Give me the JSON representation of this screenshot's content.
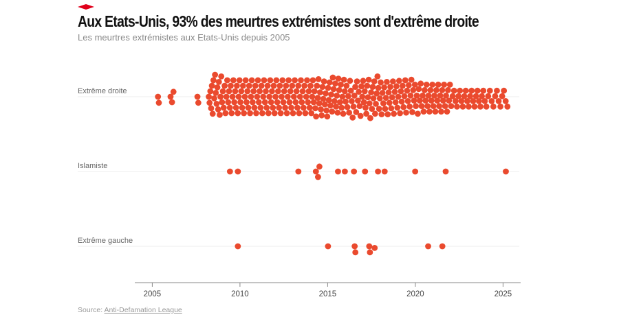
{
  "header": {
    "title": "Aux Etats-Unis, 93% des meurtres extrémistes sont d'extrême droite",
    "subtitle": "Les meurtres extrémistes aux Etats-Unis depuis 2005"
  },
  "source": {
    "prefix": "Source: ",
    "link_text": "Anti-Defamation League"
  },
  "colors": {
    "dot": "#ea4a2e",
    "accent": "#e0001b"
  },
  "chart_data": {
    "type": "scatter",
    "subtype": "beeswarm",
    "title": "Aux Etats-Unis, 93% des meurtres extrémistes sont d'extrême droite",
    "subtitle": "Les meurtres extrémistes aux Etats-Unis depuis 2005",
    "xlim": [
      2004,
      2026
    ],
    "xticks": [
      "2005",
      "2010",
      "2015",
      "2020",
      "2025"
    ],
    "tick_values": [
      2005,
      2010,
      2015,
      2020,
      2025
    ],
    "grid": false,
    "series": [
      {
        "name": "Extrême droite",
        "counts_by_year": {
          "2005": 2,
          "2006": 3,
          "2007": 2,
          "2008": 18,
          "2009": 20,
          "2010": 20,
          "2011": 20,
          "2012": 20,
          "2013": 20,
          "2014": 22,
          "2015": 22,
          "2016": 20,
          "2017": 22,
          "2018": 20,
          "2019": 20,
          "2020": 18,
          "2021": 18,
          "2022": 12,
          "2023": 12,
          "2024": 10,
          "2025": 3
        }
      },
      {
        "name": "Islamiste",
        "dates": [
          2009.43,
          2009.88,
          2013.33,
          2014.33,
          2014.45,
          2014.53,
          2015.59,
          2015.98,
          2016.5,
          2017.13,
          2017.87,
          2018.25,
          2019.99,
          2021.73,
          2025.16
        ]
      },
      {
        "name": "Extrême gauche",
        "dates": [
          2009.88,
          2015.02,
          2016.54,
          2016.58,
          2017.37,
          2017.41,
          2017.68,
          2020.73,
          2021.54
        ]
      }
    ]
  }
}
